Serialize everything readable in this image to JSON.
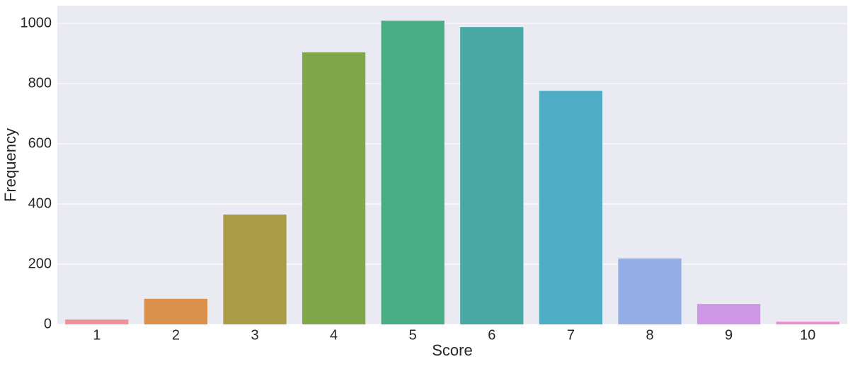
{
  "chart_data": {
    "type": "bar",
    "x_label": "Score",
    "y_label": "Frequency",
    "categories": [
      "1",
      "2",
      "3",
      "4",
      "5",
      "6",
      "7",
      "8",
      "9",
      "10"
    ],
    "values": [
      16,
      85,
      365,
      904,
      1009,
      988,
      776,
      219,
      68,
      9
    ],
    "colors": [
      "#ee9199",
      "#d9914b",
      "#aa9c46",
      "#80a84a",
      "#4aae84",
      "#4aa9a4",
      "#4eacc4",
      "#93aee6",
      "#cd97e6",
      "#ec8fd0"
    ],
    "ylim": [
      0,
      1059
    ],
    "yticks": [
      0,
      200,
      400,
      600,
      800,
      1000
    ],
    "grid": true
  }
}
